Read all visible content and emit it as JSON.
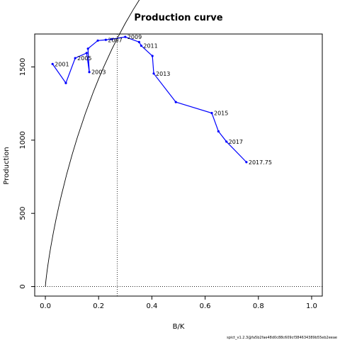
{
  "chart_data": {
    "type": "line",
    "title": "Production curve",
    "xlabel": "B/K",
    "ylabel": "Production",
    "xlim": [
      -0.04,
      1.04
    ],
    "ylim": [
      -65,
      1725
    ],
    "xticks": [
      0.0,
      0.2,
      0.4,
      0.6,
      0.8,
      1.0
    ],
    "xtick_labels": [
      "0.0",
      "0.2",
      "0.4",
      "0.6",
      "0.8",
      "1.0"
    ],
    "yticks": [
      0,
      500,
      1000,
      1500
    ],
    "ytick_labels": [
      "0",
      "500",
      "1000",
      "1500"
    ],
    "grid": false,
    "bmsy_line_x": 0.27,
    "zero_line_y": 0,
    "theoretical_curve": {
      "x_points": [
        0,
        0.0005,
        0.001,
        0.002,
        0.004,
        0.007,
        0.01,
        0.015,
        0.02,
        0.03,
        0.04,
        0.05,
        0.06,
        0.08,
        0.1,
        0.12,
        0.15,
        0.18,
        0.2,
        0.22,
        0.25,
        0.27,
        0.3,
        0.33,
        0.36,
        0.4,
        0.45,
        0.5,
        0.55,
        0.6,
        0.65,
        0.7,
        0.75,
        0.8,
        0.85,
        0.9,
        0.95,
        1.0
      ],
      "peak": 1695,
      "x_at_peak": 0.27
    },
    "series": [
      {
        "color": "#0000ff",
        "x": [
          0.027,
          0.077,
          0.112,
          0.155,
          0.165,
          0.16,
          0.197,
          0.227,
          0.25,
          0.3,
          0.352,
          0.36,
          0.402,
          0.407,
          0.49,
          0.625,
          0.65,
          0.68,
          0.755
        ],
        "y": [
          1520,
          1390,
          1560,
          1595,
          1465,
          1625,
          1680,
          1685,
          1690,
          1705,
          1670,
          1645,
          1575,
          1455,
          1260,
          1185,
          1060,
          990,
          850
        ],
        "labels": [
          "2001",
          "",
          "2005",
          "",
          "2003",
          "",
          "",
          "2007",
          "",
          "2009",
          "",
          "2011",
          "",
          "2013",
          "",
          "2015",
          "",
          "2017",
          "2017.75"
        ],
        "endpoint_labels_at": [
          0,
          2,
          4,
          7,
          9,
          11,
          13,
          15,
          17,
          18
        ]
      }
    ],
    "footnote": "spict_v1.2.3@fa5b2fae48d0c88c609cf384634389b55eb2eeae"
  }
}
